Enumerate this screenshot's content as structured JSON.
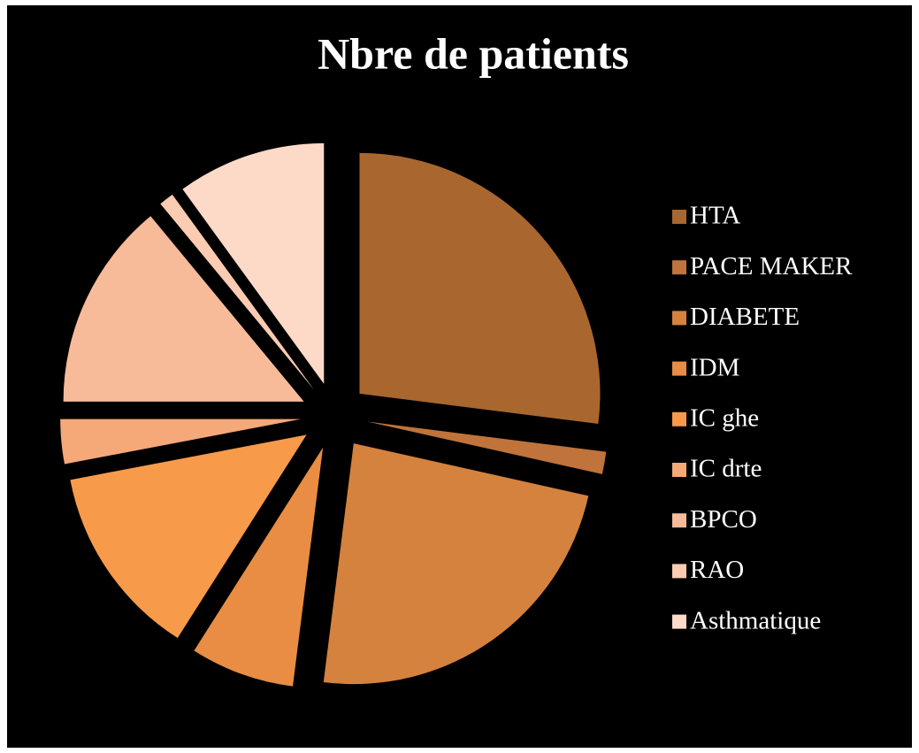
{
  "chart_data": {
    "type": "pie",
    "title": "Nbre de patients",
    "categories": [
      "HTA",
      "PACE MAKER",
      "DIABETE",
      "IDM",
      "IC ghe",
      "IC drte",
      "BPCO",
      "RAO",
      "Asthmatique"
    ],
    "values": [
      27,
      1.5,
      23.5,
      7,
      13,
      3,
      14,
      1,
      10
    ],
    "colors": [
      "#a9672f",
      "#c0733a",
      "#d5823e",
      "#e88d43",
      "#f79a4a",
      "#f5a878",
      "#f8bb9a",
      "#fbcbb2",
      "#fdd9c8"
    ],
    "legend": "right",
    "exploded": true
  }
}
